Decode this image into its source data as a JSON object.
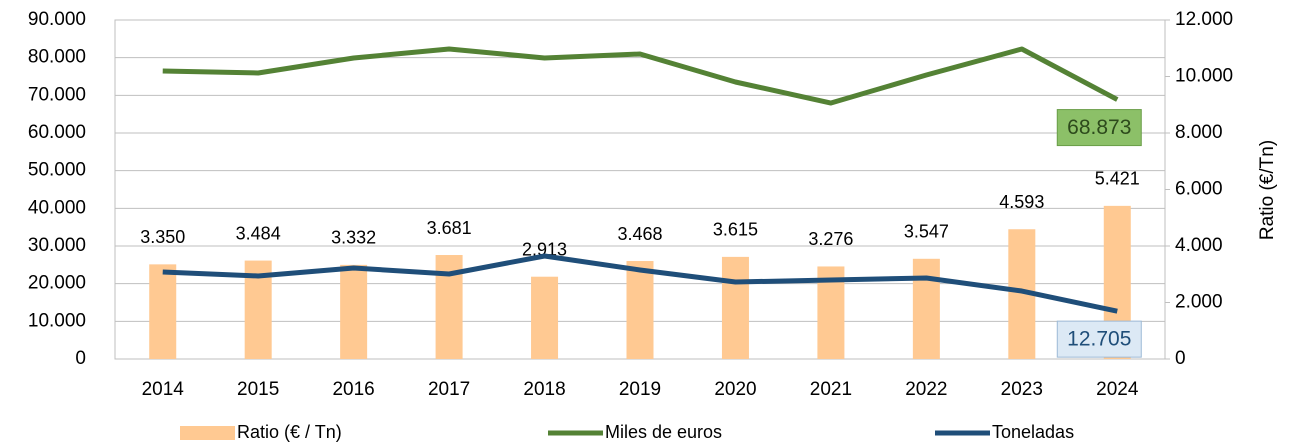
{
  "chart_data": {
    "type": "combo",
    "categories": [
      "2014",
      "2015",
      "2016",
      "2017",
      "2018",
      "2019",
      "2020",
      "2021",
      "2022",
      "2023",
      "2024"
    ],
    "series": [
      {
        "name": "Ratio (€ / Tn)",
        "type": "bar",
        "axis": "y2",
        "color": "#ffc992",
        "values": [
          3350,
          3484,
          3332,
          3681,
          2913,
          3468,
          3615,
          3276,
          3547,
          4593,
          5421
        ],
        "value_labels": [
          "3.350",
          "3.484",
          "3.332",
          "3.681",
          "2.913",
          "3.468",
          "3.615",
          "3.276",
          "3.547",
          "4.593",
          "5.421"
        ]
      },
      {
        "name": "Miles de euros",
        "type": "line",
        "color": "#548235",
        "values": [
          76460,
          75930,
          79910,
          82300,
          79910,
          80970,
          73540,
          67960,
          75400,
          82300,
          68873
        ],
        "value_labels": [
          null,
          null,
          null,
          null,
          null,
          null,
          null,
          null,
          null,
          null,
          "68.873"
        ]
      },
      {
        "name": "Toneladas",
        "type": "line",
        "color": "#1f4e79",
        "values": [
          23100,
          22040,
          24160,
          22570,
          27350,
          23630,
          20440,
          20970,
          21500,
          18050,
          12705
        ],
        "value_labels": [
          null,
          null,
          null,
          null,
          null,
          null,
          null,
          null,
          null,
          null,
          "12.705"
        ]
      }
    ],
    "ylim": [
      0,
      90000
    ],
    "yticks": [
      0,
      {
        "value": 10000,
        "label": "10.000"
      },
      {
        "value": 20000,
        "label": "20.000"
      },
      {
        "value": 30000,
        "label": "30.000"
      },
      {
        "value": 40000,
        "label": "40.000"
      },
      {
        "value": 50000,
        "label": "50.000"
      },
      {
        "value": 60000,
        "label": "60.000"
      },
      {
        "value": 70000,
        "label": "70.000"
      },
      {
        "value": 80000,
        "label": "80.000"
      },
      {
        "value": 90000,
        "label": "90.000"
      }
    ],
    "y2lim": [
      0,
      12000
    ],
    "y2ticks": [
      0,
      {
        "value": 2000,
        "label": "2.000"
      },
      {
        "value": 4000,
        "label": "4.000"
      },
      {
        "value": 6000,
        "label": "6.000"
      },
      {
        "value": 8000,
        "label": "8.000"
      },
      {
        "value": 10000,
        "label": "10.000"
      },
      {
        "value": 12000,
        "label": "12.000"
      }
    ],
    "y2label": "Ratio (€/Tn)",
    "grid": true,
    "legend": "bottom"
  }
}
